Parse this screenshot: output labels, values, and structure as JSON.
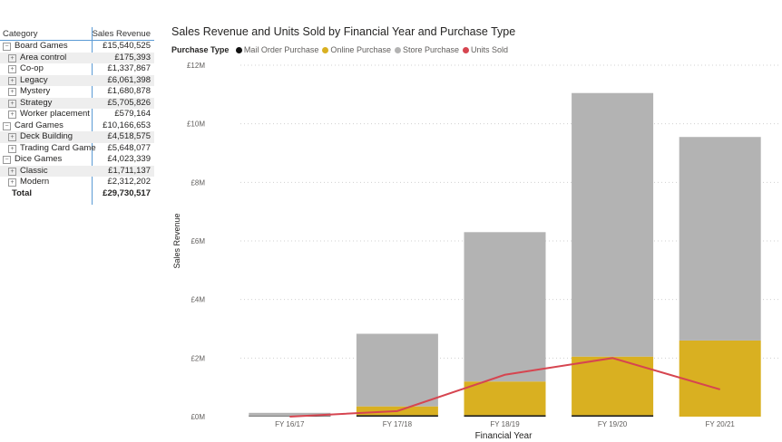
{
  "matrix": {
    "headers": {
      "category": "Category",
      "value": "Sales Revenue"
    },
    "rows": [
      {
        "type": "group",
        "label": "Board Games",
        "value": "£15,540,525"
      },
      {
        "type": "sub",
        "label": "Area control",
        "value": "£175,393"
      },
      {
        "type": "sub",
        "label": "Co-op",
        "value": "£1,337,867"
      },
      {
        "type": "sub",
        "label": "Legacy",
        "value": "£6,061,398"
      },
      {
        "type": "sub",
        "label": "Mystery",
        "value": "£1,680,878"
      },
      {
        "type": "sub",
        "label": "Strategy",
        "value": "£5,705,826"
      },
      {
        "type": "sub",
        "label": "Worker placement",
        "value": "£579,164"
      },
      {
        "type": "group",
        "label": "Card Games",
        "value": "£10,166,653"
      },
      {
        "type": "sub",
        "label": "Deck Building",
        "value": "£4,518,575"
      },
      {
        "type": "sub",
        "label": "Trading Card Game",
        "value": "£5,648,077"
      },
      {
        "type": "group",
        "label": "Dice Games",
        "value": "£4,023,339"
      },
      {
        "type": "sub",
        "label": "Classic",
        "value": "£1,711,137"
      },
      {
        "type": "sub",
        "label": "Modern",
        "value": "£2,312,202"
      },
      {
        "type": "total",
        "label": "Total",
        "value": "£29,730,517"
      }
    ]
  },
  "chart_data": {
    "type": "bar",
    "title": "Sales Revenue and Units Sold by Financial Year and Purchase Type",
    "legend_title": "Purchase Type",
    "xlabel": "Financial Year",
    "ylabel": "Sales Revenue",
    "categories": [
      "FY 16/17",
      "FY 17/18",
      "FY 18/19",
      "FY 19/20",
      "FY 20/21"
    ],
    "y_ticks": [
      0,
      2000000,
      4000000,
      6000000,
      8000000,
      10000000,
      12000000
    ],
    "y_tick_labels": [
      "£0M",
      "£2M",
      "£4M",
      "£6M",
      "£8M",
      "£10M",
      "£12M"
    ],
    "ylim": [
      0,
      12000000
    ],
    "legend_position": "top",
    "series": [
      {
        "name": "Mail Order Purchase",
        "color": "#111111",
        "kind": "stacked-bar",
        "values": [
          10000,
          50000,
          50000,
          50000,
          0
        ]
      },
      {
        "name": "Online Purchase",
        "color": "#d9b021",
        "kind": "stacked-bar",
        "values": [
          0,
          300000,
          1150000,
          2000000,
          2600000
        ]
      },
      {
        "name": "Store Purchase",
        "color": "#b3b3b3",
        "kind": "stacked-bar",
        "values": [
          120000,
          2480000,
          5100000,
          9000000,
          6950000
        ]
      },
      {
        "name": "Units Sold",
        "color": "#d64550",
        "kind": "line",
        "values": [
          0,
          190000,
          1430000,
          2000000,
          930000
        ]
      }
    ]
  }
}
